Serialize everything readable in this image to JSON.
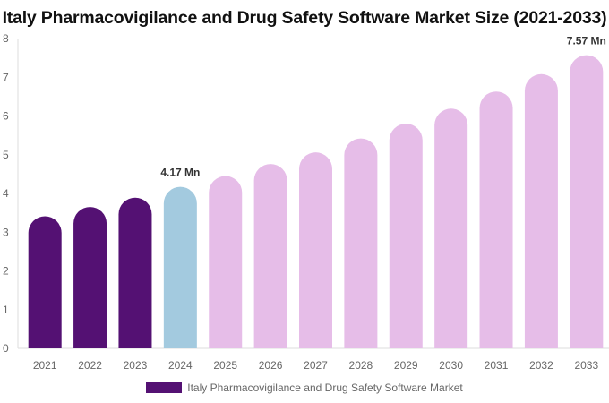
{
  "chart_data": {
    "type": "bar",
    "title": "Italy Pharmacovigilance and Drug Safety Software Market Size (2021-2033)",
    "categories": [
      "2021",
      "2022",
      "2023",
      "2024",
      "2025",
      "2026",
      "2027",
      "2028",
      "2029",
      "2030",
      "2031",
      "2032",
      "2033"
    ],
    "series": [
      {
        "name": "Italy Pharmacovigilance and Drug Safety Software Market",
        "values": [
          3.41,
          3.65,
          3.89,
          4.17,
          4.45,
          4.76,
          5.06,
          5.42,
          5.8,
          6.19,
          6.63,
          7.08,
          7.57
        ]
      }
    ],
    "data_labels": {
      "2024": "4.17 Mn",
      "2033": "7.57 Mn"
    },
    "ylim": [
      0,
      8
    ],
    "yticks": [
      0,
      1,
      2,
      3,
      4,
      5,
      6,
      7,
      8
    ],
    "xlabel": "",
    "ylabel": "",
    "grid": false,
    "legend_position": "bottom",
    "colors": {
      "historical": "#541173",
      "base_year": "#a3cadf",
      "forecast": "#e6bde8"
    },
    "color_by_category": [
      "historical",
      "historical",
      "historical",
      "base_year",
      "forecast",
      "forecast",
      "forecast",
      "forecast",
      "forecast",
      "forecast",
      "forecast",
      "forecast",
      "forecast"
    ]
  }
}
